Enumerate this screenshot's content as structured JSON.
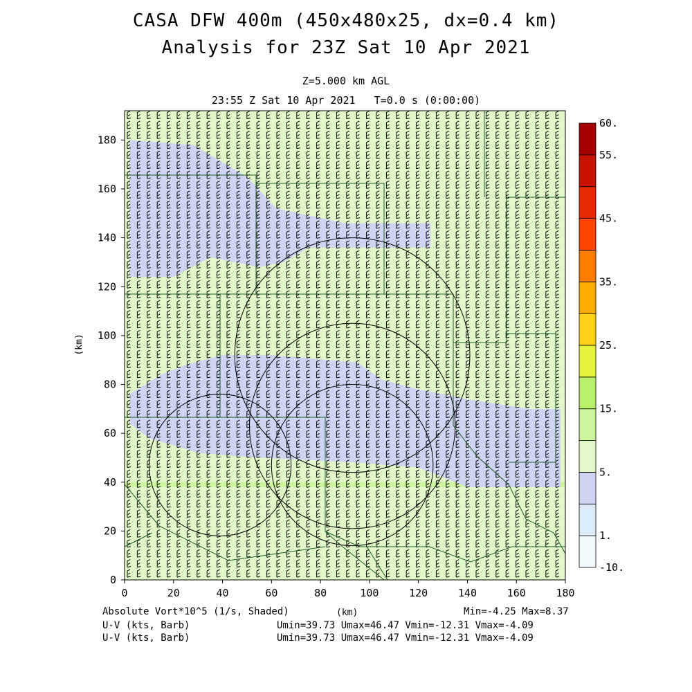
{
  "header": {
    "title_line1": "CASA DFW 400m (450x480x25, dx=0.4 km)",
    "title_line2": "Analysis for 23Z Sat 10 Apr 2021",
    "level": "Z=5.000 km AGL",
    "time": "23:55 Z Sat 10 Apr 2021   T=0.0 s (0:00:00)"
  },
  "axes": {
    "x_label": "(km)",
    "y_label": "(km)",
    "x_ticks": [
      "0",
      "20",
      "40",
      "60",
      "80",
      "100",
      "120",
      "140",
      "160",
      "180"
    ],
    "y_ticks": [
      "0",
      "20",
      "40",
      "60",
      "80",
      "100",
      "120",
      "140",
      "160",
      "180"
    ]
  },
  "colorbar": {
    "labels": [
      "60.",
      "55.",
      "45.",
      "35.",
      "25.",
      "15.",
      "5.",
      "1.",
      "-10."
    ],
    "colors": [
      "#f0f8fc",
      "#dcecf8",
      "#cdd5f2",
      "#e1f8c8",
      "#cdf59e",
      "#b8f06a",
      "#e6f53a",
      "#ffd11a",
      "#ffab00",
      "#ff7c00",
      "#ff4600",
      "#e82a00",
      "#c81400",
      "#a50000"
    ]
  },
  "footer": {
    "field_label": "Absolute Vort*10^5 (1/s, Shaded)",
    "x_unit": "(km)",
    "minmax": "Min=-4.25 Max=8.37",
    "barb_label_1": "U-V (kts, Barb)",
    "barb_stats_1": "Umin=39.73 Umax=46.47 Vmin=-12.31 Vmax=-4.09",
    "barb_label_2": "U-V (kts, Barb)",
    "barb_stats_2": "Umin=39.73 Umax=46.47 Vmin=-12.31 Vmax=-4.09"
  },
  "field_colors": {
    "background": "#cdf59e",
    "light_green": "#e1f8c8",
    "lavender": "#cdd5f2"
  },
  "range_rings": [
    {
      "center_km": [
        93,
        92
      ],
      "radius_km": 48
    },
    {
      "center_km": [
        93,
        63
      ],
      "radius_km": 42
    },
    {
      "center_km": [
        39,
        47
      ],
      "radius_km": 29
    },
    {
      "center_km": [
        93,
        47
      ],
      "radius_km": 33
    }
  ]
}
